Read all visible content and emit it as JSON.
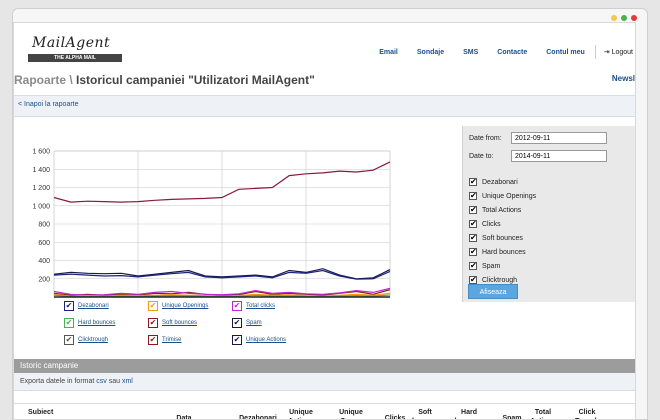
{
  "window": {
    "dots": [
      "#f2c94c",
      "#4caf50",
      "#e53935"
    ]
  },
  "logo": {
    "name": "MailAgent",
    "tagline": "THE ALPHA MAIL"
  },
  "nav": {
    "items": [
      "Email",
      "Sondaje",
      "SMS",
      "Contacte",
      "Contul meu"
    ],
    "logout": "Logout"
  },
  "page": {
    "crumb": "Rapoarte",
    "sep": " \\ ",
    "title": "Istoricul campaniei \"Utilizatori MailAgent\"",
    "newsl": "Newsl"
  },
  "back": "< Inapoi la rapoarte",
  "filters": {
    "from_label": "Date from:",
    "from_value": "2012-09-11",
    "to_label": "Date to:",
    "to_value": "2014-09-11"
  },
  "checkboxes": [
    "Dezabonari",
    "Unique Openings",
    "Total Actions",
    "Clicks",
    "Soft bounces",
    "Hard bounces",
    "Spam",
    "Clicktrough"
  ],
  "apply": "Afiseaza",
  "legend": [
    {
      "label": "Dezabonari",
      "color": "#1a237e"
    },
    {
      "label": "Unique Openings",
      "color": "#f39c12"
    },
    {
      "label": "Total clicks",
      "color": "#c026d3"
    },
    {
      "label": "Hard bounces",
      "color": "#4caf50"
    },
    {
      "label": "Soft bounces",
      "color": "#8b1a1a"
    },
    {
      "label": "Spam",
      "color": "#1a1a4a"
    },
    {
      "label": "Clicktrough",
      "color": "#555555"
    },
    {
      "label": "Trimise",
      "color": "#8b1a1a"
    },
    {
      "label": "Unique Actions",
      "color": "#1a1a4a"
    }
  ],
  "section": {
    "title": "Istoric campanie",
    "export_prefix": "Exporta datele in format ",
    "csv": "csv",
    "sau": " sau ",
    "xml": "xml"
  },
  "table": {
    "headers": [
      "Subiect",
      "Data",
      "Dezabonari",
      "Unique Actions",
      "Unique Opens",
      "Clicks",
      "Soft bounces",
      "Hard bounces",
      "Spam",
      "Total Actions",
      "Click Trough"
    ]
  },
  "chart_data": {
    "type": "line",
    "ylim": [
      0,
      1600
    ],
    "yticks": [
      "200",
      "400",
      "600",
      "800",
      "1 000",
      "1 200",
      "1 400",
      "1 600"
    ],
    "series": [
      {
        "color": "#8b1a3a",
        "values": [
          1090,
          1040,
          1050,
          1045,
          1040,
          1045,
          1060,
          1070,
          1075,
          1080,
          1090,
          1180,
          1190,
          1200,
          1330,
          1350,
          1360,
          1380,
          1370,
          1390,
          1480
        ]
      },
      {
        "color": "#1a1a4a",
        "values": [
          250,
          270,
          260,
          255,
          260,
          230,
          250,
          270,
          290,
          230,
          220,
          230,
          240,
          220,
          290,
          270,
          310,
          240,
          200,
          210,
          300
        ]
      },
      {
        "color": "#1a237e",
        "values": [
          240,
          250,
          240,
          230,
          235,
          220,
          240,
          255,
          270,
          220,
          210,
          220,
          230,
          210,
          270,
          260,
          290,
          230,
          195,
          200,
          280
        ]
      },
      {
        "color": "#8b1a1a",
        "values": [
          40,
          20,
          30,
          20,
          30,
          20,
          40,
          35,
          50,
          30,
          20,
          25,
          60,
          30,
          40,
          30,
          20,
          40,
          60,
          30,
          80
        ]
      },
      {
        "color": "#c026d3",
        "values": [
          60,
          30,
          20,
          25,
          40,
          30,
          50,
          60,
          40,
          30,
          25,
          35,
          70,
          40,
          50,
          35,
          30,
          45,
          70,
          50,
          95
        ]
      },
      {
        "color": "#f39c12",
        "values": [
          30,
          10,
          15,
          10,
          20,
          15,
          20,
          25,
          20,
          15,
          10,
          15,
          30,
          20,
          25,
          15,
          10,
          20,
          30,
          20,
          40
        ]
      },
      {
        "color": "#4caf50",
        "values": [
          20,
          5,
          8,
          5,
          10,
          8,
          12,
          15,
          12,
          8,
          5,
          8,
          18,
          10,
          12,
          8,
          5,
          10,
          15,
          10,
          22
        ]
      }
    ]
  }
}
